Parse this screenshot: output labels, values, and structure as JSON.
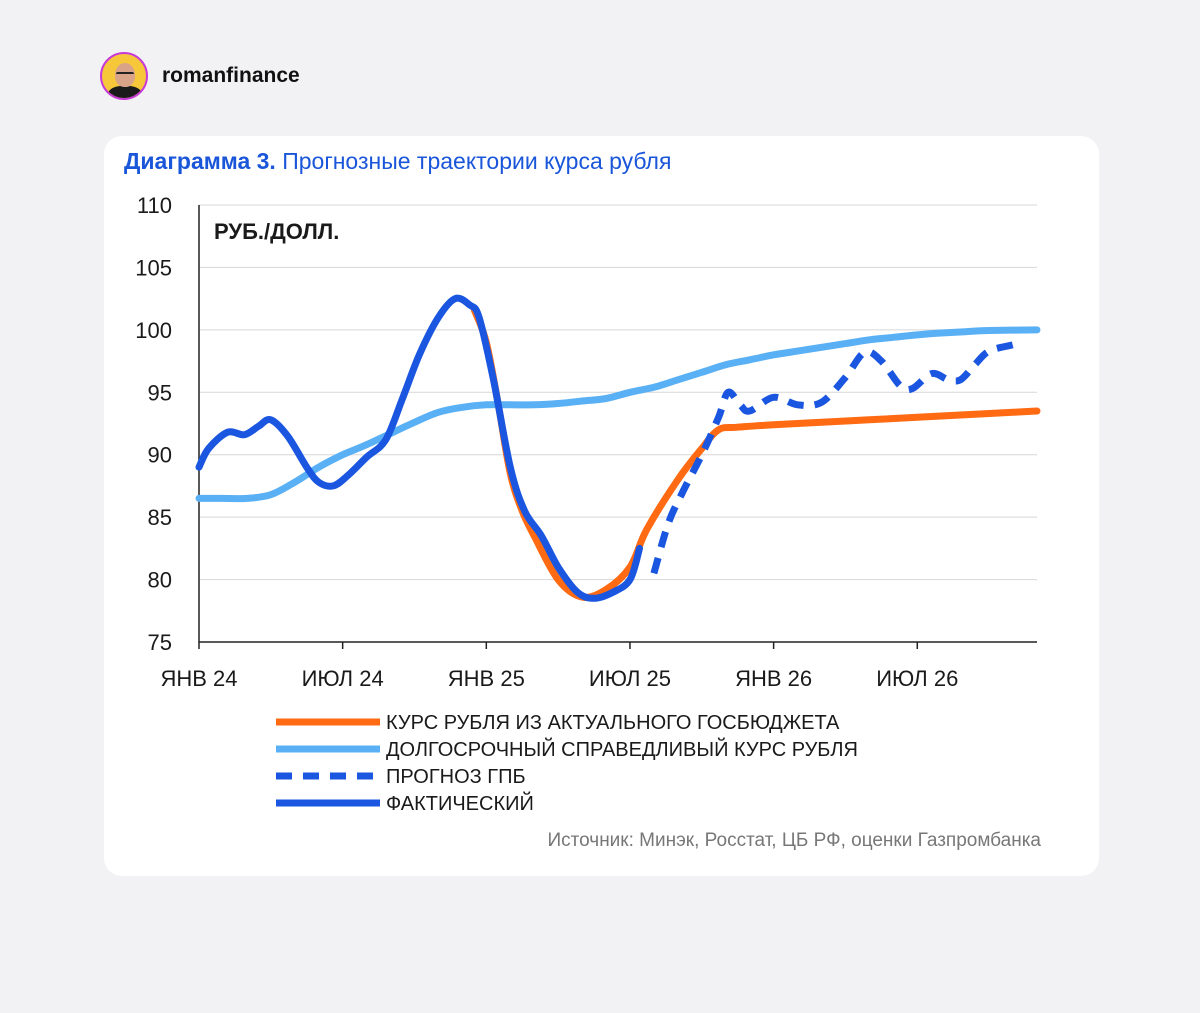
{
  "account": {
    "username": "romanfinance"
  },
  "chart_data": {
    "type": "line",
    "title_number": "Диаграмма 3.",
    "title": "Прогнозные траектории курса рубля",
    "unit_label": "РУБ./ДОЛЛ.",
    "ylim": [
      75,
      110
    ],
    "yticks": [
      75,
      80,
      85,
      90,
      95,
      100,
      105,
      110
    ],
    "xlim": [
      0,
      35
    ],
    "xticks": [
      {
        "label": "ЯНВ 24",
        "x": 0
      },
      {
        "label": "ИЮЛ 24",
        "x": 6
      },
      {
        "label": "ЯНВ 25",
        "x": 12
      },
      {
        "label": "ИЮЛ 25",
        "x": 18
      },
      {
        "label": "ЯНВ 26",
        "x": 24
      },
      {
        "label": "ИЮЛ 26",
        "x": 30
      }
    ],
    "grid": true,
    "series": [
      {
        "name": "КУРС РУБЛЯ ИЗ АКТУАЛЬНОГО ГОСБЮДЖЕТА",
        "color": "#ff6a13",
        "style": "solid",
        "width": 7,
        "points": [
          [
            11.5,
            101.6
          ],
          [
            12,
            99
          ],
          [
            12.5,
            94
          ],
          [
            13,
            88.5
          ],
          [
            13.5,
            85.5
          ],
          [
            14,
            83.5
          ],
          [
            15,
            80
          ],
          [
            16,
            78.6
          ],
          [
            17,
            79.2
          ],
          [
            18,
            81
          ],
          [
            18.7,
            84
          ],
          [
            20,
            88
          ],
          [
            21,
            90.5
          ],
          [
            21.7,
            92
          ],
          [
            22.5,
            92.2
          ],
          [
            24,
            92.4
          ],
          [
            26,
            92.6
          ],
          [
            28,
            92.8
          ],
          [
            30,
            93
          ],
          [
            32,
            93.2
          ],
          [
            34,
            93.4
          ],
          [
            35,
            93.5
          ]
        ]
      },
      {
        "name": "ДОЛГОСРОЧНЫЙ СПРАВЕДЛИВЫЙ КУРС РУБЛЯ",
        "color": "#5ab0f5",
        "style": "solid",
        "width": 7,
        "points": [
          [
            0,
            86.5
          ],
          [
            1,
            86.5
          ],
          [
            2,
            86.5
          ],
          [
            3,
            86.8
          ],
          [
            4,
            87.8
          ],
          [
            5,
            89
          ],
          [
            6,
            90
          ],
          [
            7,
            90.8
          ],
          [
            8,
            91.7
          ],
          [
            9,
            92.6
          ],
          [
            10,
            93.4
          ],
          [
            11,
            93.8
          ],
          [
            12,
            94
          ],
          [
            13,
            94
          ],
          [
            14,
            94
          ],
          [
            15,
            94.1
          ],
          [
            16,
            94.3
          ],
          [
            17,
            94.5
          ],
          [
            18,
            95
          ],
          [
            19,
            95.4
          ],
          [
            20,
            96
          ],
          [
            21,
            96.6
          ],
          [
            22,
            97.2
          ],
          [
            23,
            97.6
          ],
          [
            24,
            98
          ],
          [
            25,
            98.3
          ],
          [
            26,
            98.6
          ],
          [
            27,
            98.9
          ],
          [
            28,
            99.2
          ],
          [
            29,
            99.4
          ],
          [
            30,
            99.6
          ],
          [
            31,
            99.75
          ],
          [
            32,
            99.85
          ],
          [
            33,
            99.95
          ],
          [
            35,
            100
          ]
        ]
      },
      {
        "name": "ПРОГНОЗ ГПБ",
        "color": "#1a56e0",
        "style": "dashed",
        "width": 7,
        "points": [
          [
            19,
            80.5
          ],
          [
            19.6,
            84.5
          ],
          [
            20.2,
            87
          ],
          [
            21,
            90
          ],
          [
            21.7,
            93
          ],
          [
            22.1,
            95
          ],
          [
            22.6,
            94
          ],
          [
            23,
            93.5
          ],
          [
            24,
            94.6
          ],
          [
            25,
            94
          ],
          [
            26,
            94.2
          ],
          [
            27,
            96.2
          ],
          [
            27.8,
            98.2
          ],
          [
            28.5,
            97.5
          ],
          [
            29.3,
            95.5
          ],
          [
            29.8,
            95.3
          ],
          [
            30.6,
            96.5
          ],
          [
            31.3,
            96
          ],
          [
            31.8,
            96
          ],
          [
            32.4,
            97.2
          ],
          [
            33,
            98.3
          ],
          [
            34,
            98.8
          ]
        ]
      },
      {
        "name": "ФАКТИЧЕСКИЙ",
        "color": "#1a56e0",
        "style": "solid",
        "width": 7,
        "points": [
          [
            0,
            89
          ],
          [
            0.4,
            90.5
          ],
          [
            1.2,
            91.8
          ],
          [
            1.9,
            91.6
          ],
          [
            2.5,
            92.3
          ],
          [
            3,
            92.8
          ],
          [
            3.7,
            91.5
          ],
          [
            4.5,
            89
          ],
          [
            5,
            87.8
          ],
          [
            5.6,
            87.5
          ],
          [
            6.2,
            88.3
          ],
          [
            7,
            89.8
          ],
          [
            7.8,
            91.2
          ],
          [
            8.5,
            94.5
          ],
          [
            9.2,
            98
          ],
          [
            10,
            101
          ],
          [
            10.7,
            102.5
          ],
          [
            11.3,
            102
          ],
          [
            11.7,
            101
          ],
          [
            12.3,
            96
          ],
          [
            13,
            89
          ],
          [
            13.6,
            85.5
          ],
          [
            14.3,
            83.5
          ],
          [
            15,
            81
          ],
          [
            15.8,
            79
          ],
          [
            16.5,
            78.5
          ],
          [
            17.3,
            79
          ],
          [
            18,
            80
          ],
          [
            18.4,
            82.5
          ]
        ]
      }
    ],
    "legend": "bottom-left",
    "source": "Источник: Минэк, Росстат, ЦБ РФ, оценки Газпромбанка"
  }
}
